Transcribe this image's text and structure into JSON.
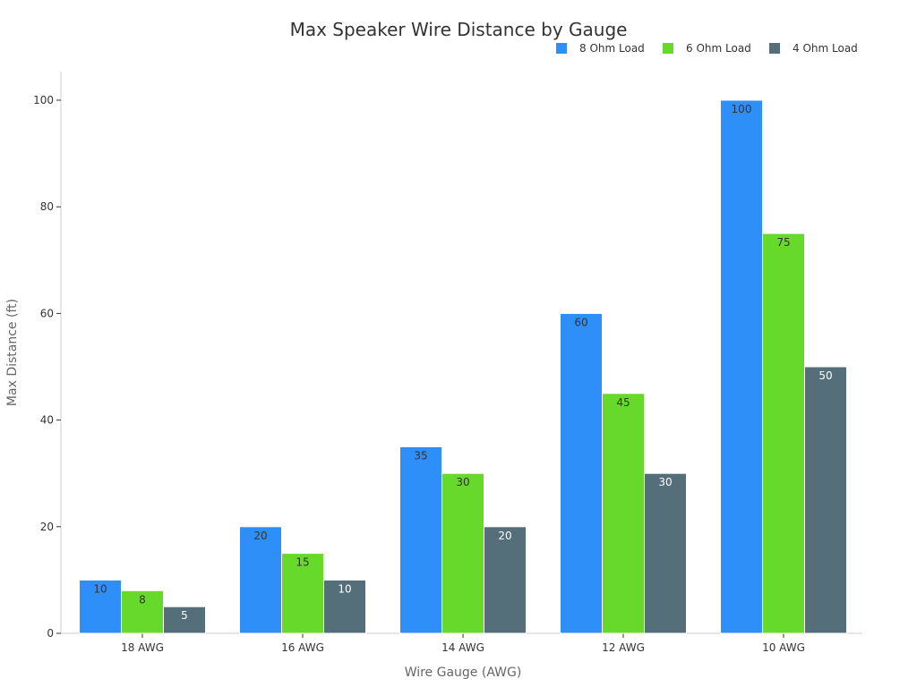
{
  "chart_data": {
    "type": "bar",
    "title": "Max Speaker Wire Distance by Gauge",
    "xlabel": "Wire Gauge (AWG)",
    "ylabel": "Max Distance (ft)",
    "categories": [
      "18 AWG",
      "16 AWG",
      "14 AWG",
      "12 AWG",
      "10 AWG"
    ],
    "ylim": [
      0,
      105
    ],
    "yticks": [
      0,
      20,
      40,
      60,
      80,
      100
    ],
    "grid": false,
    "legend_position": "top-right",
    "series": [
      {
        "name": "8 Ohm Load",
        "color": "#2f8ff8",
        "label_color": "#333333",
        "values": [
          10,
          20,
          35,
          60,
          100
        ]
      },
      {
        "name": "6 Ohm Load",
        "color": "#66d92a",
        "label_color": "#333333",
        "values": [
          8,
          15,
          30,
          45,
          75
        ]
      },
      {
        "name": "4 Ohm Load",
        "color": "#546e7a",
        "label_color": "#ffffff",
        "values": [
          5,
          10,
          20,
          30,
          50
        ]
      }
    ]
  }
}
